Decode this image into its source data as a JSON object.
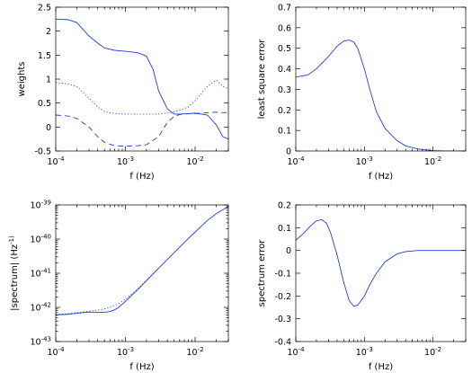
{
  "colors": {
    "series": "#1f3fd6",
    "axes": "#000000",
    "background": "#ffffff"
  },
  "chart_data": [
    {
      "type": "line",
      "xscale": "log",
      "xlim": [
        0.0001,
        0.03
      ],
      "ylim": [
        -0.5,
        2.5
      ],
      "xlabel": "f (Hz)",
      "ylabel": "weights",
      "xticks": [
        0.0001,
        0.001,
        0.01
      ],
      "xticklabels": [
        "10^-4",
        "10^-3",
        "10^-2"
      ],
      "yticks": [
        -0.5,
        0,
        0.5,
        1,
        1.5,
        2,
        2.5
      ],
      "yticklabels": [
        "-0.5",
        "0",
        "0.5",
        "1",
        "1.5",
        "2",
        "2.5"
      ],
      "grid": false,
      "series": [
        {
          "style": "solid",
          "x": [
            0.0001,
            0.00015,
            0.0002,
            0.0003,
            0.0004,
            0.0005,
            0.0007,
            0.001,
            0.0015,
            0.002,
            0.0025,
            0.003,
            0.004,
            0.005,
            0.006,
            0.008,
            0.01,
            0.015,
            0.02,
            0.025,
            0.03
          ],
          "y": [
            2.25,
            2.24,
            2.18,
            1.9,
            1.75,
            1.65,
            1.6,
            1.58,
            1.55,
            1.48,
            1.2,
            0.75,
            0.38,
            0.27,
            0.27,
            0.28,
            0.29,
            0.25,
            0.05,
            -0.2,
            -0.25
          ]
        },
        {
          "style": "dotted",
          "x": [
            0.0001,
            0.00015,
            0.0002,
            0.0003,
            0.0004,
            0.0005,
            0.0007,
            0.001,
            0.0015,
            0.002,
            0.003,
            0.004,
            0.005,
            0.006,
            0.008,
            0.01,
            0.012,
            0.015,
            0.02,
            0.025,
            0.03
          ],
          "y": [
            0.93,
            0.9,
            0.85,
            0.6,
            0.42,
            0.32,
            0.28,
            0.27,
            0.27,
            0.27,
            0.27,
            0.29,
            0.32,
            0.35,
            0.42,
            0.55,
            0.68,
            0.85,
            0.98,
            0.85,
            0.8
          ]
        },
        {
          "style": "dashed",
          "x": [
            0.0001,
            0.00015,
            0.0002,
            0.0003,
            0.0004,
            0.0005,
            0.0007,
            0.001,
            0.0015,
            0.002,
            0.003,
            0.004,
            0.005,
            0.006,
            0.008,
            0.01,
            0.015,
            0.02,
            0.025,
            0.03
          ],
          "y": [
            0.25,
            0.23,
            0.18,
            0.0,
            -0.2,
            -0.32,
            -0.39,
            -0.4,
            -0.39,
            -0.37,
            -0.2,
            0.1,
            0.22,
            0.26,
            0.28,
            0.28,
            0.3,
            0.31,
            0.3,
            0.3
          ]
        }
      ]
    },
    {
      "type": "line",
      "xscale": "log",
      "xlim": [
        0.0001,
        0.03
      ],
      "ylim": [
        0,
        0.7
      ],
      "xlabel": "f (Hz)",
      "ylabel": "least square error",
      "xticks": [
        0.0001,
        0.001,
        0.01
      ],
      "xticklabels": [
        "10^-4",
        "10^-3",
        "10^-2"
      ],
      "yticks": [
        0,
        0.1,
        0.2,
        0.3,
        0.4,
        0.5,
        0.6,
        0.7
      ],
      "yticklabels": [
        "0",
        "0.1",
        "0.2",
        "0.3",
        "0.4",
        "0.5",
        "0.6",
        "0.7"
      ],
      "grid": false,
      "series": [
        {
          "style": "solid",
          "x": [
            0.0001,
            0.00015,
            0.0002,
            0.0003,
            0.0004,
            0.0005,
            0.0006,
            0.0007,
            0.0008,
            0.001,
            0.0012,
            0.0015,
            0.002,
            0.003,
            0.004,
            0.006,
            0.008,
            0.01,
            0.015,
            0.02,
            0.03
          ],
          "y": [
            0.36,
            0.37,
            0.4,
            0.46,
            0.51,
            0.535,
            0.54,
            0.53,
            0.5,
            0.4,
            0.3,
            0.19,
            0.11,
            0.05,
            0.025,
            0.01,
            0.005,
            0.002,
            0.0,
            0.0,
            0.0
          ]
        }
      ]
    },
    {
      "type": "line",
      "xscale": "log",
      "yscale": "log",
      "xlim": [
        0.0001,
        0.03
      ],
      "ylim": [
        1e-43,
        1e-39
      ],
      "xlabel": "f (Hz)",
      "ylabel": "|spectrum| (Hz^-1)",
      "xticks": [
        0.0001,
        0.001,
        0.01
      ],
      "xticklabels": [
        "10^-4",
        "10^-3",
        "10^-2"
      ],
      "yticks": [
        1e-43,
        1e-42,
        1e-41,
        1e-40,
        1e-39
      ],
      "yticklabels": [
        "10^-43",
        "10^-42",
        "10^-41",
        "10^-40",
        "10^-39"
      ],
      "grid": false,
      "series": [
        {
          "style": "solid",
          "x": [
            0.0001,
            0.00015,
            0.0002,
            0.0003,
            0.0004,
            0.0005,
            0.0006,
            0.0007,
            0.0008,
            0.001,
            0.0015,
            0.002,
            0.003,
            0.005,
            0.007,
            0.01,
            0.015,
            0.02,
            0.03
          ],
          "y": [
            6e-43,
            6.3e-43,
            6.7e-43,
            7.3e-43,
            7.2e-43,
            7.2e-43,
            7.6e-43,
            8.5e-43,
            1e-42,
            1.5e-42,
            3.3e-42,
            6e-42,
            1.4e-41,
            4e-41,
            8e-41,
            1.6e-40,
            3.5e-40,
            5.5e-40,
            9e-40
          ]
        },
        {
          "style": "dotted",
          "x": [
            0.0001,
            0.00015,
            0.0002,
            0.0003,
            0.0004,
            0.0005,
            0.0006,
            0.0007,
            0.0008,
            0.001,
            0.0015,
            0.002,
            0.003
          ],
          "y": [
            6.2e-43,
            6.5e-43,
            7e-43,
            7.7e-43,
            8.3e-43,
            9e-43,
            1e-42,
            1.15e-42,
            1.3e-42,
            1.7e-42,
            3.5e-42,
            6.2e-42,
            1.4e-41
          ]
        }
      ]
    },
    {
      "type": "line",
      "xscale": "log",
      "xlim": [
        0.0001,
        0.03
      ],
      "ylim": [
        -0.4,
        0.2
      ],
      "xlabel": "f (Hz)",
      "ylabel": "spectrum error",
      "xticks": [
        0.0001,
        0.001,
        0.01
      ],
      "xticklabels": [
        "10^-4",
        "10^-3",
        "10^-2"
      ],
      "yticks": [
        -0.4,
        -0.3,
        -0.2,
        -0.1,
        0,
        0.1,
        0.2
      ],
      "yticklabels": [
        "-0.4",
        "-0.3",
        "-0.2",
        "-0.1",
        "0",
        "0.1",
        "0.2"
      ],
      "grid": false,
      "series": [
        {
          "style": "solid",
          "x": [
            0.0001,
            0.00013,
            0.00016,
            0.0002,
            0.00024,
            0.00028,
            0.00032,
            0.0004,
            0.0005,
            0.0006,
            0.0007,
            0.0008,
            0.001,
            0.0012,
            0.0015,
            0.002,
            0.003,
            0.004,
            0.006,
            0.008,
            0.01,
            0.015,
            0.02,
            0.03
          ],
          "y": [
            0.045,
            0.075,
            0.105,
            0.13,
            0.135,
            0.12,
            0.08,
            -0.02,
            -0.14,
            -0.22,
            -0.245,
            -0.24,
            -0.2,
            -0.15,
            -0.1,
            -0.05,
            -0.015,
            -0.005,
            0.0,
            0.0,
            0.0,
            0.0,
            0.0,
            0.0
          ]
        }
      ]
    }
  ]
}
